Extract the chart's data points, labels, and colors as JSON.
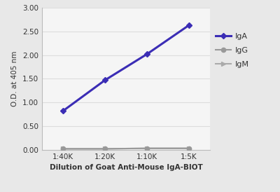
{
  "x_labels": [
    "1:40K",
    "1:20K",
    "1:10K",
    "1:5K"
  ],
  "x_values": [
    1,
    2,
    3,
    4
  ],
  "IgA_values": [
    0.82,
    1.47,
    2.02,
    2.63
  ],
  "IgG_values": [
    0.02,
    0.02,
    0.03,
    0.03
  ],
  "IgM_values": [
    0.02,
    0.02,
    0.03,
    0.03
  ],
  "IgA_color": "#3b2db5",
  "IgG_color": "#999999",
  "IgM_color": "#aaaaaa",
  "xlabel": "Dilution of Goat Anti-Mouse IgA-BIOT",
  "ylabel": "O.D. at 405 nm",
  "ylim": [
    0.0,
    3.0
  ],
  "yticks": [
    0.0,
    0.5,
    1.0,
    1.5,
    2.0,
    2.5,
    3.0
  ],
  "background_color": "#e8e8e8",
  "plot_bg_color": "#f5f5f5",
  "grid_color": "#dddddd",
  "label_fontsize": 7.5,
  "tick_fontsize": 7.5,
  "legend_fontsize": 8
}
